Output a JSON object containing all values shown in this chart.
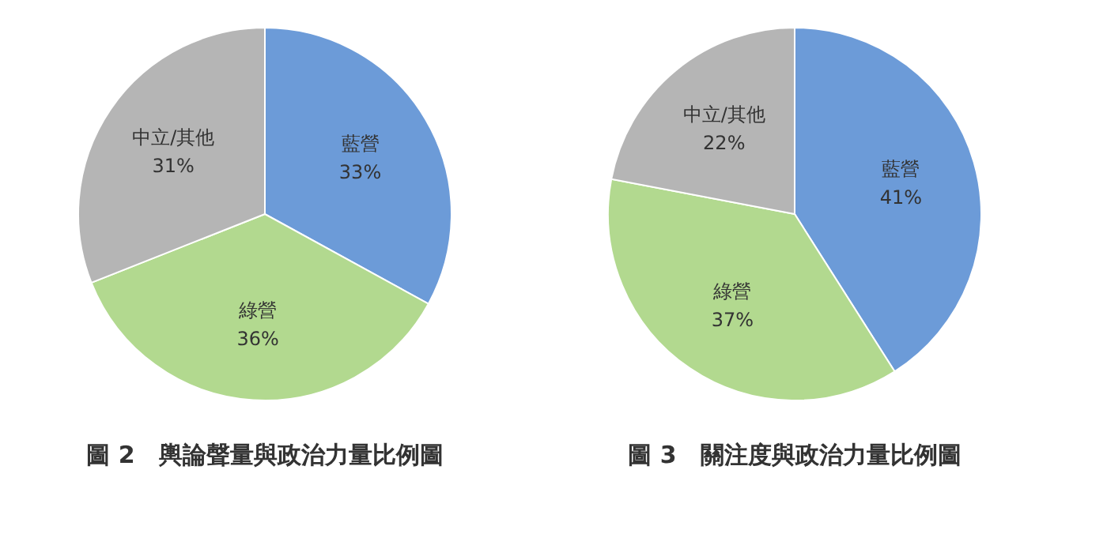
{
  "chart_data": [
    {
      "type": "pie",
      "title": "圖 2　輿論聲量與政治力量比例圖",
      "categories": [
        "藍營",
        "綠營",
        "中立/其他"
      ],
      "values": [
        33,
        36,
        31
      ],
      "value_labels": [
        "33%",
        "36%",
        "31%"
      ],
      "colors": [
        "#6c9bd8",
        "#b2d98f",
        "#b5b5b5"
      ],
      "legend": false
    },
    {
      "type": "pie",
      "title": "圖 3　關注度與政治力量比例圖",
      "categories": [
        "藍營",
        "綠營",
        "中立/其他"
      ],
      "values": [
        41,
        37,
        22
      ],
      "value_labels": [
        "41%",
        "37%",
        "22%"
      ],
      "colors": [
        "#6c9bd8",
        "#b2d98f",
        "#b5b5b5"
      ],
      "legend": false
    }
  ]
}
